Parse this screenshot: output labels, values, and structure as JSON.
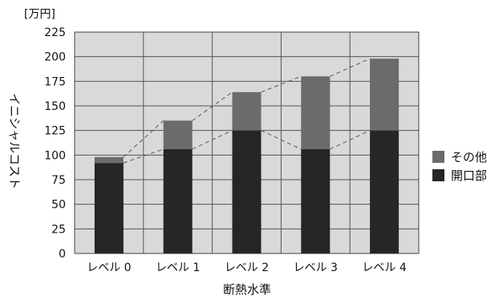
{
  "chart_data": {
    "type": "bar",
    "stacked": true,
    "unit_label": "[万円]",
    "ylabel": "イニシャルコスト",
    "xlabel": "断熱水準",
    "categories": [
      "レベル 0",
      "レベル 1",
      "レベル 2",
      "レベル 3",
      "レベル 4"
    ],
    "series": [
      {
        "name": "開口部",
        "values": [
          92,
          106,
          125,
          106,
          125
        ],
        "color": "#262626"
      },
      {
        "name": "その他",
        "values": [
          6,
          29,
          39,
          74,
          73
        ],
        "color": "#6b6b6b"
      }
    ],
    "ylim": [
      0,
      225
    ],
    "yticks": [
      "0",
      "25",
      "50",
      "75",
      "100",
      "125",
      "150",
      "175",
      "200",
      "225"
    ],
    "grid": true,
    "plot_background": "#d9d9d9",
    "connector_lines": "dashed",
    "legend_position": "right",
    "legend": [
      {
        "name": "その他",
        "color": "#6b6b6b"
      },
      {
        "name": "開口部",
        "color": "#262626"
      }
    ]
  }
}
